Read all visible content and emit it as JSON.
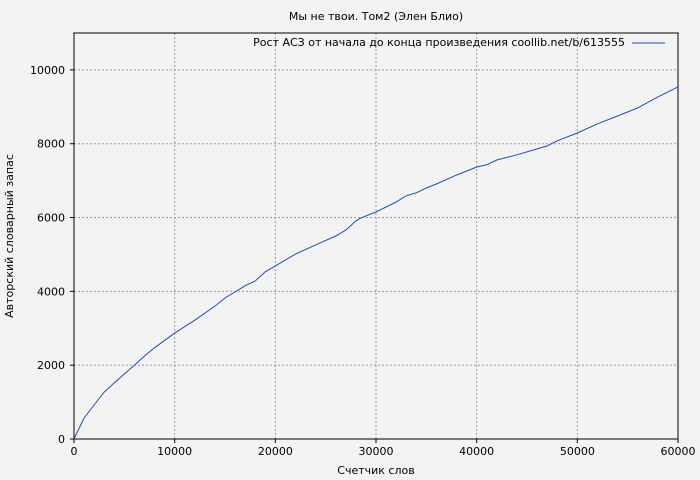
{
  "chart_data": {
    "type": "line",
    "title": "Мы не твои. Том2 (Элен Блио)",
    "xlabel": "Счетчик слов",
    "ylabel": "Авторский словарный запас",
    "xlim": [
      0,
      60000
    ],
    "ylim": [
      0,
      11000
    ],
    "xticks": [
      0,
      10000,
      20000,
      30000,
      40000,
      50000,
      60000
    ],
    "yticks": [
      0,
      2000,
      4000,
      6000,
      8000,
      10000
    ],
    "grid": true,
    "legend_placement": "top-right",
    "background": "#f3f3f3",
    "series": [
      {
        "name": "Рост АСЗ от начала до конца произведения coollib.net/b/613555",
        "color": "#1f4fb0",
        "x": [
          0,
          1000,
          2000,
          3000,
          4000,
          5000,
          6000,
          7000,
          8000,
          10000,
          12000,
          14000,
          15000,
          17000,
          18000,
          19000,
          20000,
          22000,
          24000,
          26000,
          27000,
          28000,
          28500,
          30000,
          32000,
          33000,
          34000,
          35000,
          36000,
          38000,
          40000,
          41000,
          42000,
          44000,
          46000,
          47000,
          48000,
          50000,
          52000,
          54000,
          56000,
          58000,
          60000
        ],
        "y": [
          0,
          570,
          920,
          1270,
          1520,
          1760,
          2000,
          2250,
          2470,
          2870,
          3220,
          3600,
          3820,
          4150,
          4280,
          4530,
          4690,
          5010,
          5260,
          5500,
          5660,
          5910,
          5990,
          6150,
          6420,
          6590,
          6670,
          6800,
          6910,
          7150,
          7370,
          7430,
          7560,
          7700,
          7860,
          7940,
          8080,
          8290,
          8540,
          8750,
          8970,
          9270,
          9540
        ]
      }
    ]
  }
}
